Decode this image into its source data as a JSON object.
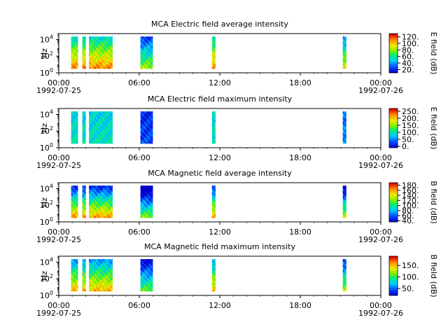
{
  "figure": {
    "x_tick_labels": [
      "00:00",
      "06:00",
      "12:00",
      "18:00",
      "00:00"
    ],
    "x_start_date": "1992-07-25",
    "x_end_date": "1992-07-26"
  },
  "chart_data": [
    {
      "type": "heatmap",
      "title": "MCA  Electric field average intensity",
      "ylabel": "Hz",
      "colorbar_label": "E field (dB)",
      "colorbar_ticks": [
        "20.",
        "40.",
        "60.",
        "80.",
        "100.",
        "120."
      ],
      "colorbar_range": [
        10,
        130
      ],
      "y_ticks": [
        "10^0",
        "10^2",
        "10^4"
      ],
      "scale": "log",
      "colormap": "rainbow",
      "xlim": [
        "1992-07-25 00:00",
        "1992-07-26 00:00"
      ],
      "ylim_exponent": [
        0,
        4.7
      ],
      "data_spans": [
        {
          "start": "00:55",
          "end": "01:25"
        },
        {
          "start": "01:45",
          "end": "02:00"
        },
        {
          "start": "02:15",
          "end": "04:00"
        },
        {
          "start": "06:05",
          "end": "07:00"
        },
        {
          "start": "11:25",
          "end": "11:40"
        },
        {
          "start": "21:10",
          "end": "21:25"
        }
      ]
    },
    {
      "type": "heatmap",
      "title": "MCA  Electric field maximum intensity",
      "ylabel": "Hz",
      "colorbar_label": "E field (dB)",
      "colorbar_ticks": [
        "0.",
        "50.",
        "100.",
        "150.",
        "200.",
        "250."
      ],
      "colorbar_range": [
        -10,
        270
      ],
      "y_ticks": [
        "10^0",
        "10^2",
        "10^4"
      ],
      "scale": "log",
      "colormap": "rainbow",
      "xlim": [
        "1992-07-25 00:00",
        "1992-07-26 00:00"
      ],
      "ylim_exponent": [
        0,
        4.7
      ],
      "data_spans": [
        {
          "start": "00:55",
          "end": "01:25"
        },
        {
          "start": "01:45",
          "end": "02:00"
        },
        {
          "start": "02:15",
          "end": "04:00"
        },
        {
          "start": "06:05",
          "end": "07:00"
        },
        {
          "start": "11:25",
          "end": "11:40"
        },
        {
          "start": "21:10",
          "end": "21:25"
        }
      ]
    },
    {
      "type": "heatmap",
      "title": "MCA  Magnetic field average intensity",
      "ylabel": "Hz",
      "colorbar_label": "B field (dB)",
      "colorbar_ticks": [
        "40.",
        "60.",
        "80.",
        "100.",
        "120.",
        "140.",
        "160.",
        "180."
      ],
      "colorbar_range": [
        35,
        190
      ],
      "y_ticks": [
        "10^0",
        "10^2",
        "10^4"
      ],
      "scale": "log",
      "colormap": "rainbow",
      "xlim": [
        "1992-07-25 00:00",
        "1992-07-26 00:00"
      ],
      "ylim_exponent": [
        0,
        4.7
      ],
      "data_spans": [
        {
          "start": "00:55",
          "end": "01:25"
        },
        {
          "start": "01:45",
          "end": "02:00"
        },
        {
          "start": "02:15",
          "end": "04:00"
        },
        {
          "start": "06:05",
          "end": "07:00"
        },
        {
          "start": "11:25",
          "end": "11:40"
        },
        {
          "start": "21:10",
          "end": "21:25"
        }
      ]
    },
    {
      "type": "heatmap",
      "title": "MCA  Magnetic field maximum intensity",
      "ylabel": "Hz",
      "colorbar_label": "B field (dB)",
      "colorbar_ticks": [
        "50.",
        "100.",
        "150."
      ],
      "colorbar_range": [
        20,
        190
      ],
      "y_ticks": [
        "10^0",
        "10^2",
        "10^4"
      ],
      "scale": "log",
      "colormap": "rainbow",
      "xlim": [
        "1992-07-25 00:00",
        "1992-07-26 00:00"
      ],
      "ylim_exponent": [
        0,
        4.7
      ],
      "data_spans": [
        {
          "start": "00:55",
          "end": "01:25"
        },
        {
          "start": "01:45",
          "end": "02:00"
        },
        {
          "start": "02:15",
          "end": "04:00"
        },
        {
          "start": "06:05",
          "end": "07:00"
        },
        {
          "start": "11:25",
          "end": "11:40"
        },
        {
          "start": "21:10",
          "end": "21:25"
        }
      ]
    }
  ]
}
